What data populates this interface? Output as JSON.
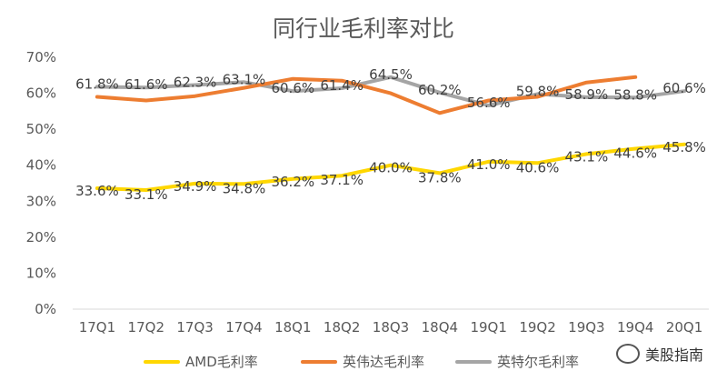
{
  "chart_data": {
    "type": "line",
    "title": "同行业毛利率对比",
    "categories": [
      "17Q1",
      "17Q2",
      "17Q3",
      "17Q4",
      "18Q1",
      "18Q2",
      "18Q3",
      "18Q4",
      "19Q1",
      "19Q2",
      "19Q3",
      "19Q4",
      "20Q1"
    ],
    "y_ticks": [
      "0%",
      "10%",
      "20%",
      "30%",
      "40%",
      "50%",
      "60%",
      "70%"
    ],
    "ylim": [
      0,
      70
    ],
    "grid": false,
    "legend_position": "bottom",
    "series": [
      {
        "name": "AMD毛利率",
        "color": "#FFD700",
        "values": [
          33.6,
          33.1,
          34.9,
          34.8,
          36.2,
          37.1,
          40.0,
          37.8,
          41.0,
          40.6,
          43.1,
          44.6,
          45.8
        ],
        "labels": [
          "33.6%",
          "33.1%",
          "34.9%",
          "34.8%",
          "36.2%",
          "37.1%",
          "40.0%",
          "37.8%",
          "41.0%",
          "40.6%",
          "43.1%",
          "44.6%",
          "45.8%"
        ]
      },
      {
        "name": "英伟达毛利率",
        "color": "#ED7D31",
        "values": [
          59.0,
          58.0,
          59.2,
          61.5,
          64.0,
          63.5,
          60.0,
          54.5,
          58.0,
          59.0,
          63.0,
          64.5,
          null
        ],
        "labels": []
      },
      {
        "name": "英特尔毛利率",
        "color": "#A5A5A5",
        "values": [
          61.8,
          61.6,
          62.3,
          63.1,
          60.6,
          61.4,
          64.5,
          60.2,
          56.6,
          59.8,
          58.9,
          58.8,
          60.6
        ],
        "labels": [
          "61.8%",
          "61.6%",
          "62.3%",
          "63.1%",
          "60.6%",
          "61.4%",
          "64.5%",
          "60.2%",
          "56.6%",
          "59.8%",
          "58.9%",
          "58.8%",
          "60.6%"
        ]
      }
    ]
  },
  "watermark": {
    "text": "美股指南",
    "icon": "wechat-icon"
  }
}
